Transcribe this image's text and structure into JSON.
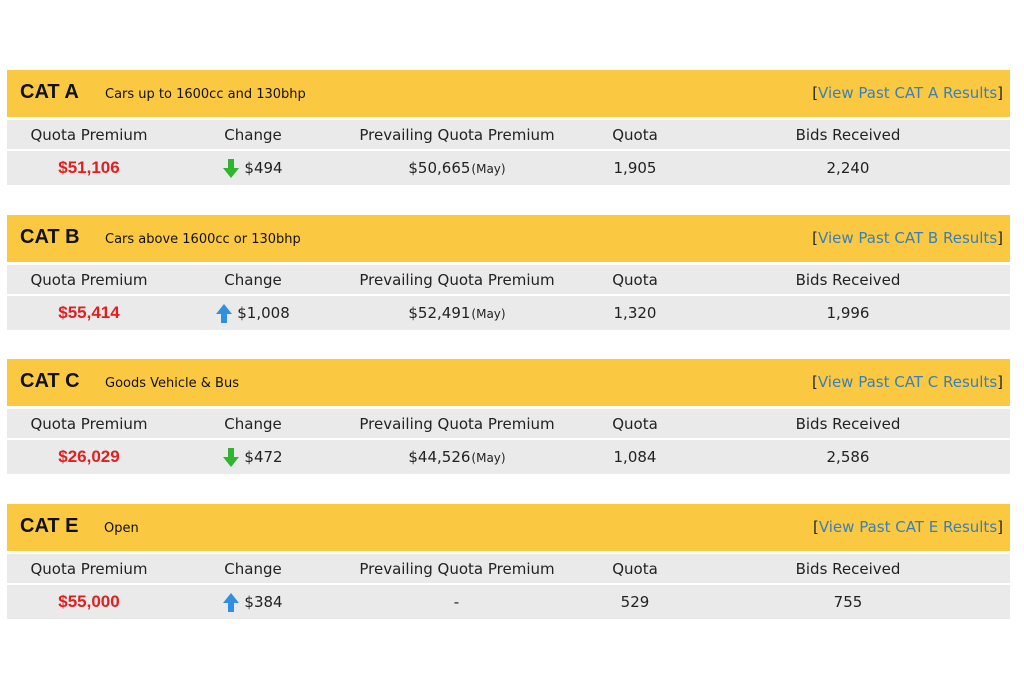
{
  "columns": {
    "premium": "Quota Premium",
    "change": "Change",
    "prevailing": "Prevailing Quota Premium",
    "quota": "Quota",
    "bids": "Bids Received"
  },
  "colors": {
    "header": "#fbc941",
    "row": "#eaeaea",
    "premium": "#e02020",
    "link": "#3a7fb8",
    "down": "#2fb52f",
    "up": "#2f8fe0"
  },
  "categories": [
    {
      "code": "CAT A",
      "desc": "Cars up to 1600cc and 130bhp",
      "link_open": "[",
      "link": "View Past CAT A Results",
      "link_close": "]",
      "premium": "$51,106",
      "direction": "down-arrow-icon",
      "change": "$494",
      "prevailing": "$50,665",
      "prevailing_month": "(May)",
      "quota": "1,905",
      "bids": "2,240"
    },
    {
      "code": "CAT B",
      "desc": "Cars above 1600cc or 130bhp",
      "link_open": "[",
      "link": "View Past CAT B Results",
      "link_close": "]",
      "premium": "$55,414",
      "direction": "up-arrow-icon",
      "change": "$1,008",
      "prevailing": "$52,491",
      "prevailing_month": "(May)",
      "quota": "1,320",
      "bids": "1,996"
    },
    {
      "code": "CAT C",
      "desc": "Goods Vehicle & Bus",
      "link_open": "[",
      "link": "View Past CAT C Results",
      "link_close": "]",
      "premium": "$26,029",
      "direction": "down-arrow-icon",
      "change": "$472",
      "prevailing": "$44,526",
      "prevailing_month": "(May)",
      "quota": "1,084",
      "bids": "2,586"
    },
    {
      "code": "CAT E",
      "desc": "Open",
      "link_open": "[",
      "link": "View Past CAT E Results",
      "link_close": "]",
      "premium": "$55,000",
      "direction": "up-arrow-icon",
      "change": "$384",
      "prevailing": "-",
      "prevailing_month": "",
      "quota": "529",
      "bids": "755"
    }
  ]
}
